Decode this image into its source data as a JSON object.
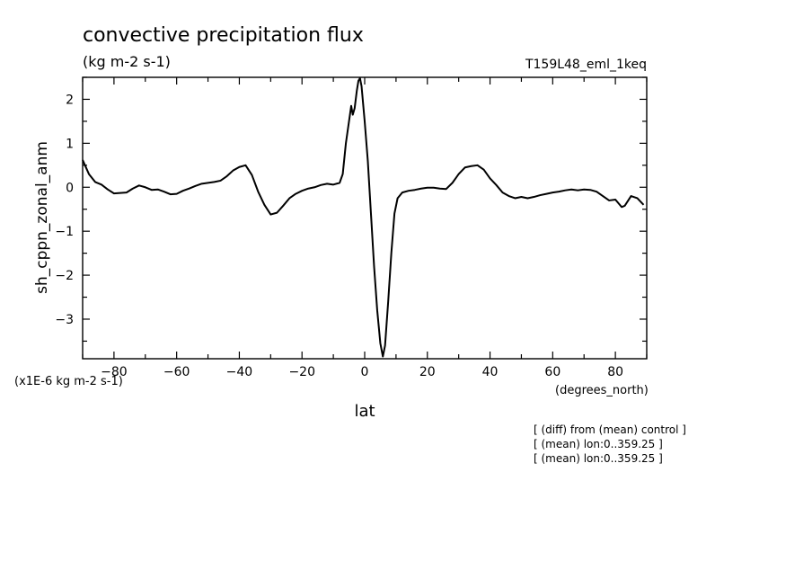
{
  "chart_data": {
    "type": "line",
    "title": "convective precipitation flux",
    "units": "(kg m-2 s-1)",
    "run_label": "T159L48_eml_1keq",
    "xlabel": "lat",
    "x_units": "(degrees_north)",
    "ylabel": "sh_cppn_zonal_anm",
    "y_scale_note": "(x1E-6 kg m-2 s-1)",
    "xlim": [
      -90,
      90
    ],
    "ylim": [
      -3.9,
      2.5
    ],
    "x_ticks": [
      -80,
      -60,
      -40,
      -20,
      0,
      20,
      40,
      60,
      80
    ],
    "y_ticks": [
      2,
      1,
      0,
      -1,
      -2,
      -3
    ],
    "grid": false,
    "notes": [
      "[ (diff) from (mean) control ]",
      "[ (mean) lon:0..359.25 ]",
      "[ (mean) lon:0..359.25 ]"
    ],
    "series": [
      {
        "values": [
          [
            -90,
            0.62
          ],
          [
            -88,
            0.3
          ],
          [
            -86,
            0.12
          ],
          [
            -84,
            0.06
          ],
          [
            -82,
            -0.05
          ],
          [
            -80,
            -0.14
          ],
          [
            -78,
            -0.13
          ],
          [
            -76,
            -0.12
          ],
          [
            -74,
            -0.03
          ],
          [
            -72,
            0.04
          ],
          [
            -70,
            0.0
          ],
          [
            -68,
            -0.06
          ],
          [
            -66,
            -0.05
          ],
          [
            -64,
            -0.1
          ],
          [
            -62,
            -0.16
          ],
          [
            -60,
            -0.15
          ],
          [
            -58,
            -0.08
          ],
          [
            -56,
            -0.03
          ],
          [
            -54,
            0.03
          ],
          [
            -52,
            0.08
          ],
          [
            -50,
            0.1
          ],
          [
            -48,
            0.12
          ],
          [
            -46,
            0.15
          ],
          [
            -44,
            0.25
          ],
          [
            -42,
            0.38
          ],
          [
            -40,
            0.46
          ],
          [
            -38,
            0.5
          ],
          [
            -36,
            0.28
          ],
          [
            -34,
            -0.1
          ],
          [
            -32,
            -0.4
          ],
          [
            -30,
            -0.62
          ],
          [
            -28,
            -0.58
          ],
          [
            -26,
            -0.42
          ],
          [
            -24,
            -0.25
          ],
          [
            -22,
            -0.15
          ],
          [
            -20,
            -0.08
          ],
          [
            -18,
            -0.03
          ],
          [
            -16,
            0.0
          ],
          [
            -14,
            0.05
          ],
          [
            -12,
            0.08
          ],
          [
            -10,
            0.06
          ],
          [
            -8,
            0.1
          ],
          [
            -7,
            0.3
          ],
          [
            -6,
            1.0
          ],
          [
            -5,
            1.5
          ],
          [
            -4.3,
            1.85
          ],
          [
            -3.8,
            1.65
          ],
          [
            -3.2,
            1.8
          ],
          [
            -2.5,
            2.2
          ],
          [
            -2,
            2.42
          ],
          [
            -1.5,
            2.48
          ],
          [
            -1,
            2.3
          ],
          [
            0,
            1.5
          ],
          [
            1,
            0.6
          ],
          [
            2,
            -0.6
          ],
          [
            3,
            -1.8
          ],
          [
            4,
            -2.8
          ],
          [
            5,
            -3.55
          ],
          [
            5.8,
            -3.85
          ],
          [
            6.5,
            -3.6
          ],
          [
            7.5,
            -2.6
          ],
          [
            8.5,
            -1.5
          ],
          [
            9.5,
            -0.6
          ],
          [
            10.5,
            -0.25
          ],
          [
            12,
            -0.12
          ],
          [
            14,
            -0.08
          ],
          [
            16,
            -0.06
          ],
          [
            18,
            -0.03
          ],
          [
            20,
            -0.01
          ],
          [
            22,
            -0.01
          ],
          [
            24,
            -0.03
          ],
          [
            26,
            -0.04
          ],
          [
            28,
            0.1
          ],
          [
            30,
            0.3
          ],
          [
            32,
            0.45
          ],
          [
            34,
            0.48
          ],
          [
            36,
            0.5
          ],
          [
            38,
            0.4
          ],
          [
            40,
            0.2
          ],
          [
            42,
            0.05
          ],
          [
            44,
            -0.12
          ],
          [
            46,
            -0.2
          ],
          [
            48,
            -0.25
          ],
          [
            50,
            -0.22
          ],
          [
            52,
            -0.25
          ],
          [
            54,
            -0.22
          ],
          [
            56,
            -0.18
          ],
          [
            58,
            -0.15
          ],
          [
            60,
            -0.12
          ],
          [
            62,
            -0.1
          ],
          [
            64,
            -0.07
          ],
          [
            66,
            -0.05
          ],
          [
            68,
            -0.07
          ],
          [
            70,
            -0.05
          ],
          [
            72,
            -0.06
          ],
          [
            74,
            -0.1
          ],
          [
            76,
            -0.2
          ],
          [
            78,
            -0.3
          ],
          [
            80,
            -0.28
          ],
          [
            82,
            -0.45
          ],
          [
            83,
            -0.42
          ],
          [
            85,
            -0.2
          ],
          [
            87,
            -0.25
          ],
          [
            89,
            -0.4
          ]
        ]
      }
    ]
  }
}
